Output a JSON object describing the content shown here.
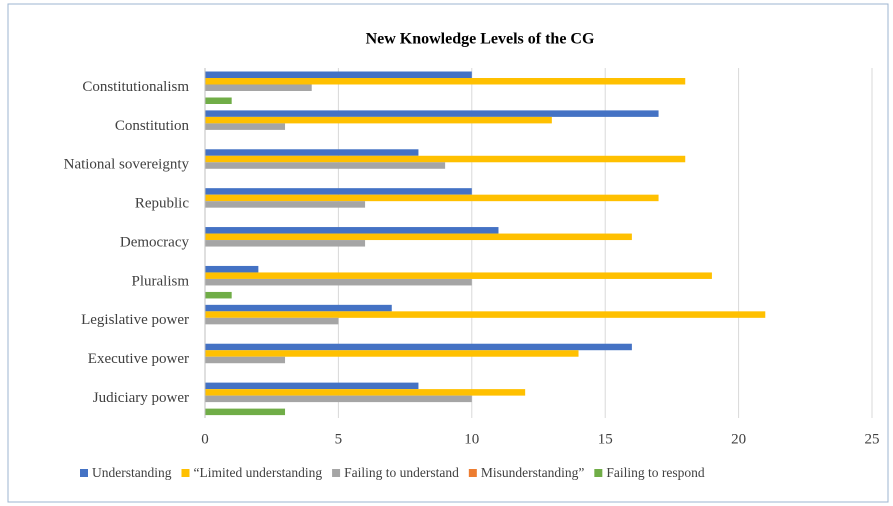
{
  "chart_data": {
    "type": "hbar",
    "title": "New Knowledge Levels of the CG",
    "categories": [
      "Constitutionalism",
      "Constitution",
      "National sovereignty",
      "Republic",
      "Democracy",
      "Pluralism",
      "Legislative power",
      "Executive power",
      "Judiciary power"
    ],
    "series": [
      {
        "name": "Understanding",
        "color": "#4472c4",
        "values": [
          10,
          17,
          8,
          10,
          11,
          2,
          7,
          16,
          8
        ]
      },
      {
        "name": "“Limited understanding",
        "color": "#ffc000",
        "values": [
          18,
          13,
          18,
          17,
          16,
          19,
          21,
          14,
          12
        ]
      },
      {
        "name": "Failing to understand",
        "color": "#a5a5a5",
        "values": [
          4,
          3,
          9,
          6,
          6,
          10,
          5,
          3,
          10
        ]
      },
      {
        "name": "Misunderstanding”",
        "color": "#ed7d31",
        "values": [
          0,
          0,
          0,
          0,
          0,
          0,
          0,
          0,
          0
        ]
      },
      {
        "name": "Failing to respond",
        "color": "#70ad47",
        "values": [
          1,
          0,
          0,
          0,
          0,
          1,
          0,
          0,
          3
        ]
      }
    ],
    "xlim": [
      0,
      25
    ],
    "xticks": [
      0,
      5,
      10,
      15,
      20,
      25
    ],
    "grid": true,
    "legend": "bottom"
  }
}
